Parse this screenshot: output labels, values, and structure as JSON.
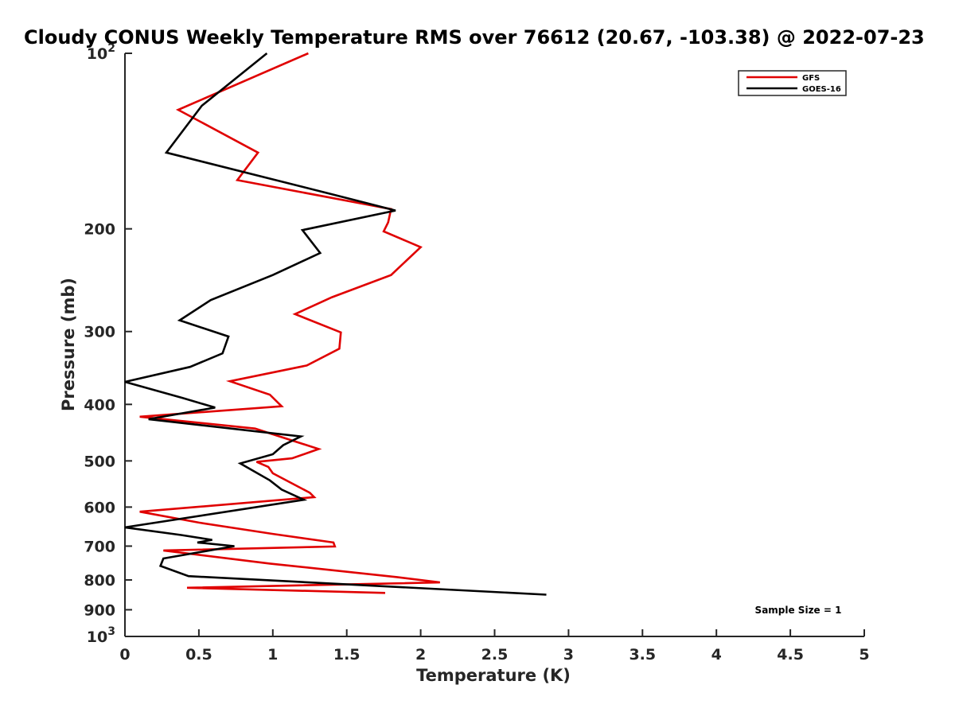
{
  "chart_data": {
    "type": "line",
    "title": "Cloudy CONUS Weekly Temperature RMS over 76612 (20.67, -103.38) @ 2022-07-23",
    "xlabel": "Temperature (K)",
    "ylabel": "Pressure (mb)",
    "xlim": [
      0,
      5
    ],
    "ylim": [
      100,
      1000
    ],
    "yscale": "log",
    "y_reversed": true,
    "x_ticks": [
      0,
      0.5,
      1,
      1.5,
      2,
      2.5,
      3,
      3.5,
      4,
      4.5,
      5
    ],
    "x_tick_labels": [
      "0",
      "0.5",
      "1",
      "1.5",
      "2",
      "2.5",
      "3",
      "3.5",
      "4",
      "4.5",
      "5"
    ],
    "y_ticks": [
      100,
      200,
      300,
      400,
      500,
      600,
      700,
      800,
      900,
      1000
    ],
    "y_tick_labels": [
      {
        "base": "10",
        "exp": "2"
      },
      {
        "base": "200",
        "exp": ""
      },
      {
        "base": "300",
        "exp": ""
      },
      {
        "base": "400",
        "exp": ""
      },
      {
        "base": "500",
        "exp": ""
      },
      {
        "base": "600",
        "exp": ""
      },
      {
        "base": "700",
        "exp": ""
      },
      {
        "base": "800",
        "exp": ""
      },
      {
        "base": "900",
        "exp": ""
      },
      {
        "base": "10",
        "exp": "3"
      }
    ],
    "legend_position": "top-right",
    "annotation": "Sample Size = 1",
    "series": [
      {
        "name": "GFS",
        "color": "#e00000",
        "x": [
          1.24,
          0.36,
          0.9,
          0.76,
          1.8,
          1.78,
          1.75,
          2.0,
          1.8,
          1.4,
          1.15,
          1.46,
          1.45,
          1.23,
          0.71,
          0.98,
          1.06,
          0.1,
          0.88,
          1.31,
          1.13,
          0.89,
          0.97,
          1.0,
          1.25,
          1.28,
          0.1,
          0.5,
          1.0,
          1.41,
          1.42,
          0.26,
          0.98,
          1.84,
          2.13,
          0.42,
          1.76
        ],
        "y": [
          100,
          125,
          148,
          165,
          185,
          195,
          202,
          215,
          240,
          262,
          280,
          301,
          321,
          343,
          365,
          385,
          403,
          420,
          440,
          477,
          495,
          502,
          512,
          525,
          567,
          577,
          611,
          638,
          667,
          690,
          701,
          712,
          750,
          791,
          808,
          825,
          842
        ]
      },
      {
        "name": "GOES-16",
        "color": "#000000",
        "x": [
          0.96,
          0.52,
          0.28,
          1.42,
          1.83,
          1.2,
          1.32,
          1.0,
          0.58,
          0.37,
          0.7,
          0.66,
          0.44,
          0.0,
          0.39,
          0.61,
          0.16,
          1.19,
          1.07,
          1.0,
          0.78,
          0.98,
          1.06,
          1.21,
          0.0,
          0.38,
          0.59,
          0.49,
          0.74,
          0.26,
          0.24,
          0.43,
          2.85
        ],
        "y": [
          100,
          123,
          148,
          175,
          186,
          201,
          220,
          240,
          265,
          287,
          306,
          327,
          345,
          366,
          390,
          405,
          424,
          454,
          470,
          487,
          505,
          540,
          560,
          583,
          650,
          670,
          683,
          690,
          700,
          735,
          757,
          788,
          848
        ]
      }
    ]
  }
}
